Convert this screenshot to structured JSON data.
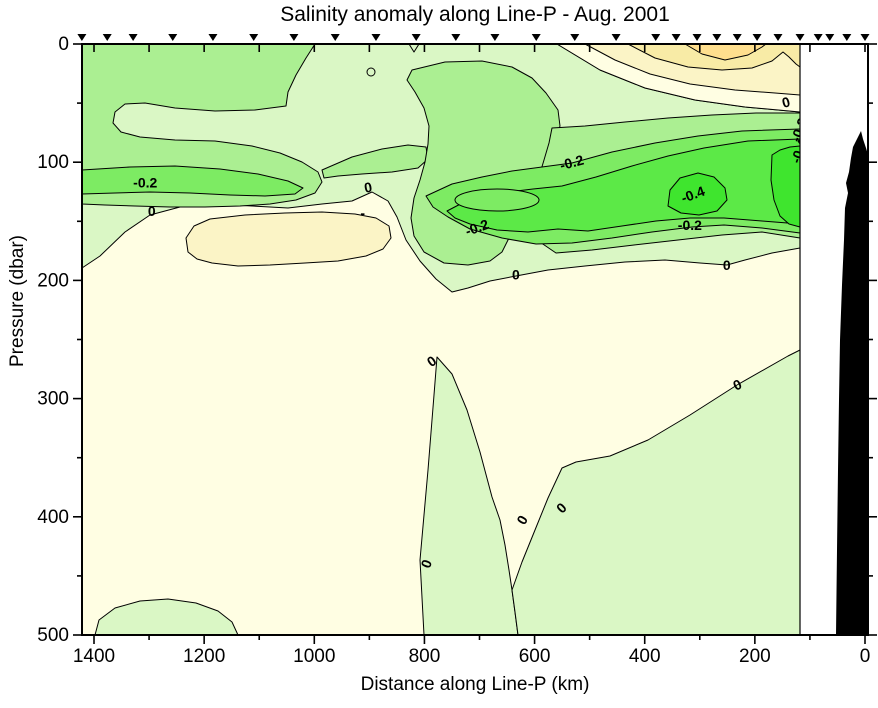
{
  "chart_data": {
    "type": "heatmap",
    "subtype": "filled-contour-section",
    "title": "Salinity anomaly along Line-P - Aug. 2001",
    "xlabel": "Distance along Line-P (km)",
    "ylabel": "Pressure (dbar)",
    "xlim": [
      1422,
      -5
    ],
    "ylim": [
      500,
      0
    ],
    "x_axis_reversed": true,
    "y_axis_inverted": true,
    "x_ticks": [
      1400,
      1200,
      1000,
      800,
      600,
      400,
      200,
      0
    ],
    "x_minor_tick_step_km": 100,
    "y_ticks": [
      0,
      100,
      200,
      300,
      400,
      500
    ],
    "y_minor_tick_step_dbar": 50,
    "contour_interval": 0.1,
    "labeled_contour_levels": [
      0,
      -0.2,
      -0.4
    ],
    "data_extent_km": [
      1422,
      120
    ],
    "palette": {
      "pos_03": "#ffdf8e",
      "pos_02": "#f8eba6",
      "pos_01": "#fbf4c6",
      "pos_00": "#fffee3",
      "neg_01": "#daf7c5",
      "neg_02": "#abef92",
      "neg_03": "#7deb63",
      "neg_04": "#5ce947",
      "neg_05": "#3fe52e",
      "bathymetry": "#000000",
      "line": "#000000"
    },
    "fill_levels": [
      {
        "range": "0.3 to 0.4",
        "color_key": "pos_03"
      },
      {
        "range": "0.2 to 0.3",
        "color_key": "pos_02"
      },
      {
        "range": "0.1 to 0.2",
        "color_key": "pos_01"
      },
      {
        "range": "0 to 0.1",
        "color_key": "pos_00"
      },
      {
        "range": "-0.1 to 0",
        "color_key": "neg_01"
      },
      {
        "range": "-0.2 to -0.1",
        "color_key": "neg_02"
      },
      {
        "range": "-0.3 to -0.2",
        "color_key": "neg_03"
      },
      {
        "range": "-0.4 to -0.3",
        "color_key": "neg_04"
      },
      {
        "range": "below -0.4",
        "color_key": "neg_05"
      }
    ],
    "station_marker_distances_km": [
      1422,
      1376,
      1329,
      1257,
      1184,
      1110,
      1037,
      962,
      888,
      815,
      743,
      672,
      597,
      527,
      452,
      380,
      343,
      305,
      269,
      232,
      196,
      158,
      118,
      85,
      64,
      33,
      0
    ],
    "contour_labels": [
      {
        "value": "-0.2",
        "km": 1307,
        "dbar": 118,
        "rot": 0
      },
      {
        "value": "0",
        "km": 1295,
        "dbar": 142,
        "rot": 0
      },
      {
        "value": "0",
        "km": 902,
        "dbar": 122,
        "rot": -10
      },
      {
        "value": "-",
        "km": 912,
        "dbar": 144,
        "rot": 0
      },
      {
        "value": "-0.2",
        "km": 532,
        "dbar": 101,
        "rot": -15
      },
      {
        "value": "-0.2",
        "km": 704,
        "dbar": 156,
        "rot": -20
      },
      {
        "value": "-0.4",
        "km": 312,
        "dbar": 128,
        "rot": -20
      },
      {
        "value": "-0.2",
        "km": 318,
        "dbar": 154,
        "rot": 0
      },
      {
        "value": "0",
        "km": 143,
        "dbar": 50,
        "rot": -15
      },
      {
        "value": "0",
        "km": 634,
        "dbar": 196,
        "rot": 0
      },
      {
        "value": "0",
        "km": 251,
        "dbar": 188,
        "rot": 0
      },
      {
        "value": "0",
        "km": 786,
        "dbar": 269,
        "rot": -35
      },
      {
        "value": "0",
        "km": 231,
        "dbar": 289,
        "rot": -25
      },
      {
        "value": "0",
        "km": 795,
        "dbar": 440,
        "rot": -70
      },
      {
        "value": "0",
        "km": 621,
        "dbar": 403,
        "rot": -60
      },
      {
        "value": "0",
        "km": 550,
        "dbar": 393,
        "rot": -45
      },
      {
        "value": "-0.2",
        "km": 118,
        "dbar": 73,
        "rot": -70
      },
      {
        "value": "-0.4",
        "km": 118,
        "dbar": 91,
        "rot": -70
      }
    ],
    "bathymetry_note": "black seafloor silhouette near coast (0-60 km), from ~75 dbar down to 500 dbar"
  },
  "legend": null
}
